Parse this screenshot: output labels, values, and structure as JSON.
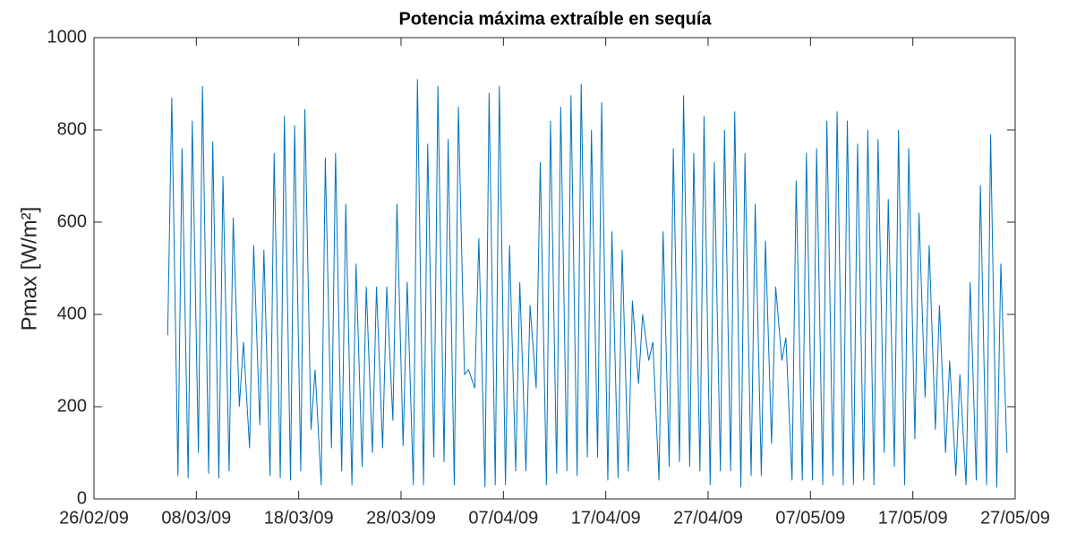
{
  "chart_data": {
    "type": "line",
    "title": "Potencia máxima extraíble en sequía",
    "ylabel": "Pmax [W/m²]",
    "x": [
      64.2,
      64.6,
      65.2,
      65.6,
      66.2,
      66.6,
      67.2,
      67.6,
      68.2,
      68.6,
      69.2,
      69.6,
      70.2,
      70.6,
      71.2,
      71.6,
      72.2,
      72.6,
      73.2,
      73.6,
      74.2,
      74.6,
      75.2,
      75.6,
      76.2,
      76.6,
      77.2,
      77.6,
      78.2,
      78.6,
      79.2,
      79.6,
      80.2,
      80.6,
      81.2,
      81.6,
      82.2,
      82.6,
      83.2,
      83.6,
      84.2,
      84.6,
      85.2,
      85.6,
      86.2,
      86.6,
      87.2,
      87.6,
      88.2,
      88.6,
      89.2,
      89.6,
      90.2,
      90.6,
      91.2,
      91.6,
      92.2,
      92.6,
      93.2,
      93.6,
      94.2,
      94.6,
      95.2,
      95.6,
      96.2,
      96.6,
      97.2,
      97.6,
      98.2,
      98.6,
      99.2,
      99.6,
      100.2,
      100.6,
      101.2,
      101.6,
      102.2,
      102.6,
      103.2,
      103.6,
      104.2,
      104.6,
      105.2,
      105.6,
      106.2,
      106.6,
      107.2,
      107.6,
      108.2,
      108.6,
      109.2,
      109.6,
      110.2,
      110.6,
      111.2,
      111.6,
      112.2,
      112.6,
      113.2,
      113.6,
      114.2,
      114.6,
      115.2,
      115.6,
      116.2,
      116.6,
      117.2,
      117.6,
      118.2,
      118.6,
      119.2,
      119.6,
      120.2,
      120.6,
      121.2,
      121.6,
      122.2,
      122.6,
      123.2,
      123.6,
      124.2,
      124.6,
      125.2,
      125.6,
      126.2,
      126.6,
      127.2,
      127.6,
      128.2,
      128.6,
      129.2,
      129.6,
      130.2,
      130.6,
      131.2,
      131.6,
      132.2,
      132.6,
      133.2,
      133.6,
      134.2,
      134.6,
      135.2,
      135.6,
      136.2,
      136.6,
      137.2,
      137.6,
      138.2,
      138.6,
      139.2,
      139.6,
      140.2,
      140.6,
      141.2,
      141.6,
      142.2,
      142.6,
      143.2,
      143.6,
      144.2,
      144.6,
      145.2,
      145.6,
      146.2
    ],
    "series": [
      {
        "color": "#0072BD",
        "values": [
          355,
          870,
          50,
          760,
          45,
          820,
          100,
          895,
          55,
          775,
          45,
          700,
          60,
          610,
          200,
          340,
          110,
          550,
          160,
          540,
          50,
          750,
          45,
          830,
          40,
          810,
          60,
          845,
          150,
          280,
          30,
          740,
          110,
          750,
          60,
          640,
          30,
          510,
          70,
          460,
          100,
          460,
          110,
          460,
          170,
          640,
          115,
          470,
          30,
          910,
          30,
          770,
          90,
          895,
          80,
          780,
          30,
          850,
          270,
          280,
          240,
          565,
          25,
          880,
          30,
          895,
          30,
          550,
          60,
          470,
          60,
          420,
          240,
          730,
          30,
          820,
          55,
          850,
          60,
          875,
          50,
          900,
          90,
          800,
          90,
          860,
          40,
          580,
          45,
          540,
          60,
          430,
          250,
          400,
          300,
          340,
          40,
          580,
          70,
          760,
          80,
          875,
          70,
          750,
          60,
          830,
          30,
          730,
          60,
          800,
          60,
          840,
          25,
          750,
          50,
          640,
          50,
          560,
          120,
          460,
          300,
          350,
          40,
          690,
          40,
          750,
          40,
          760,
          30,
          820,
          50,
          840,
          30,
          820,
          30,
          770,
          40,
          800,
          30,
          780,
          100,
          650,
          70,
          800,
          30,
          760,
          130,
          620,
          220,
          550,
          150,
          420,
          100,
          300,
          50,
          270,
          30,
          470,
          40,
          680,
          30,
          790,
          25,
          510,
          100
        ]
      }
    ],
    "xlim": [
      57,
      147
    ],
    "xticks": [
      {
        "value": 57,
        "label": "26/02/09"
      },
      {
        "value": 67,
        "label": "08/03/09"
      },
      {
        "value": 77,
        "label": "18/03/09"
      },
      {
        "value": 87,
        "label": "28/03/09"
      },
      {
        "value": 97,
        "label": "07/04/09"
      },
      {
        "value": 107,
        "label": "17/04/09"
      },
      {
        "value": 117,
        "label": "27/04/09"
      },
      {
        "value": 127,
        "label": "07/05/09"
      },
      {
        "value": 137,
        "label": "17/05/09"
      },
      {
        "value": 147,
        "label": "27/05/09"
      }
    ],
    "ylim": [
      0,
      1000
    ],
    "yticks": [
      0,
      200,
      400,
      600,
      800,
      1000
    ],
    "grid": false
  }
}
